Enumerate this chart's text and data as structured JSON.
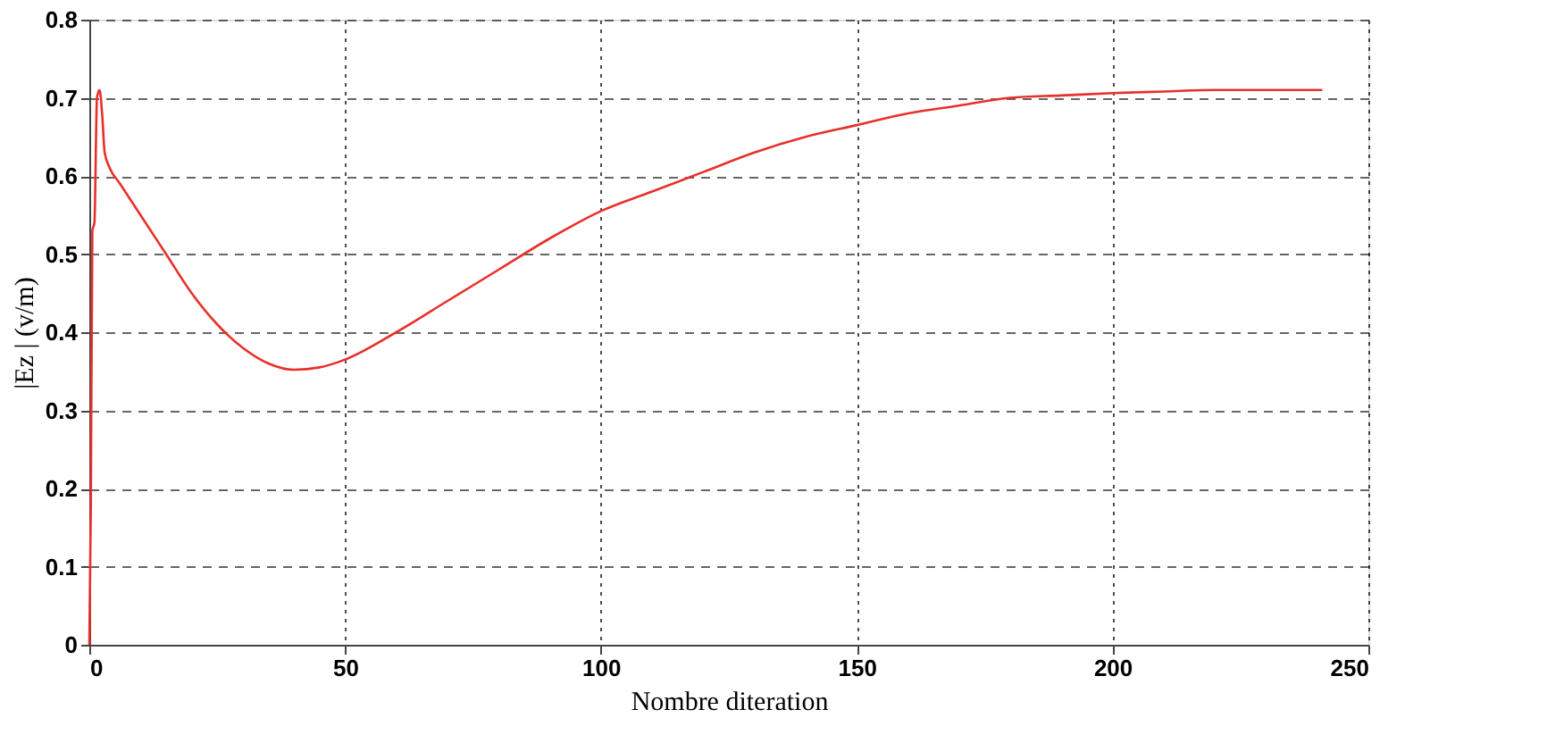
{
  "chart_data": {
    "type": "line",
    "xlabel": "Nombre diteration",
    "ylabel": "|Ez | (v/m)",
    "xlim": [
      0,
      250
    ],
    "xticks": [
      0,
      50,
      100,
      150,
      200,
      250
    ],
    "ylim": [
      0,
      0.8
    ],
    "yticks": [
      0,
      0.1,
      0.2,
      0.3,
      0.4,
      0.5,
      0.6,
      0.7,
      0.8
    ],
    "grid": true,
    "line_style": "solid",
    "series": [
      {
        "color": "#e8302a",
        "x": [
          0,
          0.3,
          0.6,
          1,
          1.5,
          2,
          2.5,
          3,
          4,
          6,
          10,
          15,
          20,
          25,
          30,
          35,
          40,
          45,
          50,
          60,
          70,
          80,
          90,
          100,
          110,
          120,
          130,
          140,
          150,
          160,
          170,
          180,
          190,
          200,
          210,
          220,
          230,
          241
        ],
        "values": [
          0,
          0.18,
          0.53,
          0.54,
          0.7,
          0.71,
          0.68,
          0.63,
          0.61,
          0.59,
          0.55,
          0.5,
          0.45,
          0.41,
          0.38,
          0.36,
          0.352,
          0.355,
          0.365,
          0.4,
          0.44,
          0.48,
          0.52,
          0.555,
          0.58,
          0.605,
          0.63,
          0.65,
          0.665,
          0.68,
          0.69,
          0.7,
          0.703,
          0.706,
          0.708,
          0.71,
          0.71,
          0.71
        ]
      }
    ]
  }
}
